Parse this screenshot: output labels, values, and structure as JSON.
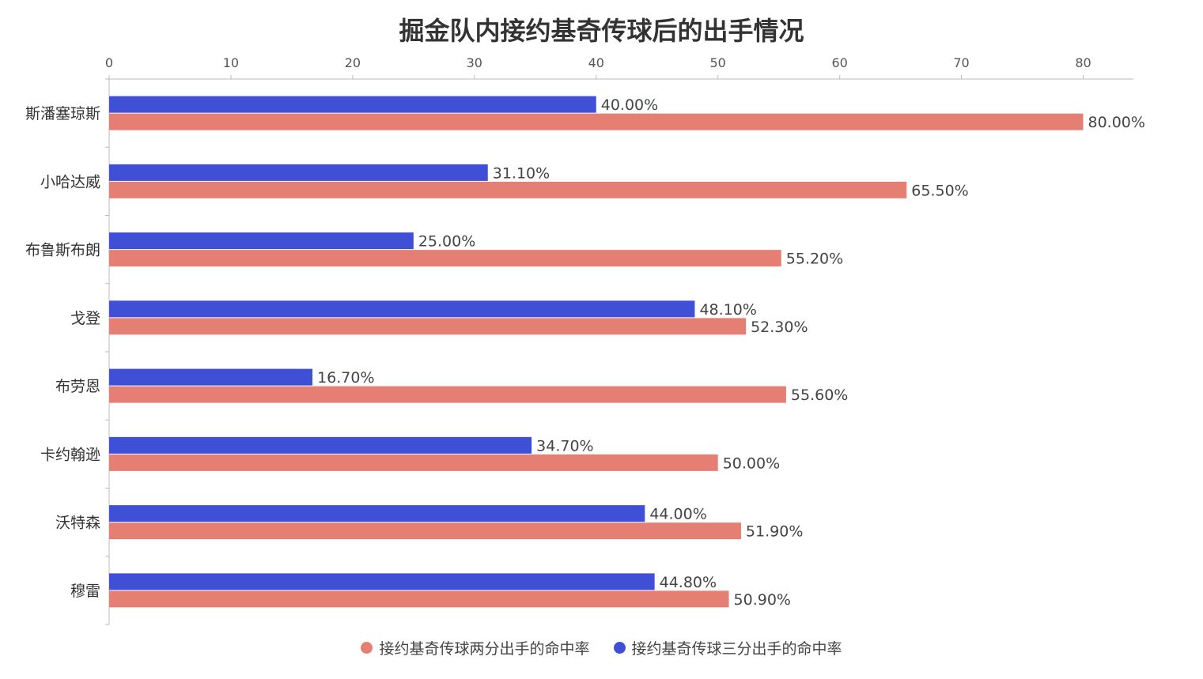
{
  "chart_data": {
    "type": "bar",
    "orientation": "horizontal",
    "title": "掘金队内接约基奇传球后的出手情况",
    "categories": [
      "斯潘塞琼斯",
      "小哈达威",
      "布鲁斯布朗",
      "戈登",
      "布劳恩",
      "卡约翰逊",
      "沃特森",
      "穆雷"
    ],
    "series": [
      {
        "name": "接约基奇传球三分出手的命中率",
        "color": "#3f4fd6",
        "values": [
          40.0,
          31.1,
          25.0,
          48.1,
          16.7,
          34.7,
          44.0,
          44.8
        ]
      },
      {
        "name": "接约基奇传球两分出手的命中率",
        "color": "#e57f74",
        "values": [
          80.0,
          65.5,
          55.2,
          52.3,
          55.6,
          50.0,
          51.9,
          50.9
        ]
      }
    ],
    "xlim": [
      0,
      84
    ],
    "xticks": [
      0,
      10,
      20,
      30,
      40,
      50,
      60,
      70,
      80
    ],
    "x_axis_position": "top",
    "value_label_suffix": "%",
    "value_label_decimals": 2,
    "grid": false,
    "legend_position": "bottom-center",
    "legend_order": [
      "接约基奇传球两分出手的命中率",
      "接约基奇传球三分出手的命中率"
    ]
  }
}
